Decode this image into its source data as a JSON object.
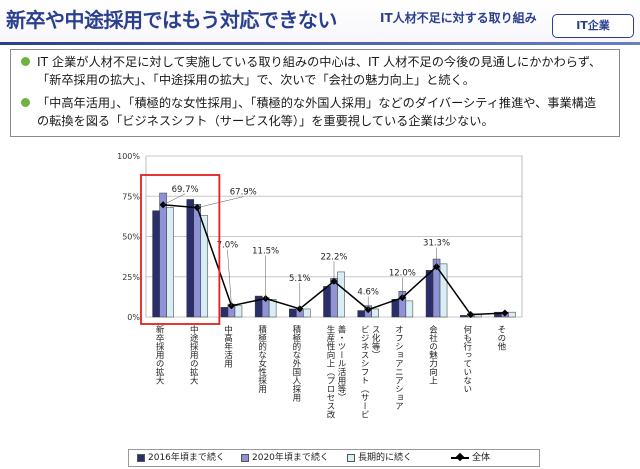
{
  "header": {
    "title": "新卒や中途採用ではもう対応できない",
    "subtitle": "IT人材不足に対する取り組み",
    "badge": "IT企業"
  },
  "notes": [
    "IT 企業が人材不足に対して実施している取り組みの中心は、IT 人材不足の今後の見通しにかかわらず、「新卒採用の拡大」、「中途採用の拡大」で、次いで「会社の魅力向上」と続く。",
    "「中高年活用」、「積極的な女性採用」、「積極的な外国人採用」などのダイバーシティ推進や、事業構造の転換を図る「ビジネスシフト（サービス化等）」を重要視している企業は少ない。"
  ],
  "colors": {
    "series1": "#2a2f6b",
    "series2": "#8f93d6",
    "series3": "#d9eef4",
    "line": "#000000",
    "highlight": "#e02020",
    "accent": "#2b3f8f",
    "bullet": "#6cb33f"
  },
  "chart_data": {
    "type": "bar",
    "categories": [
      "新卒採用の拡大",
      "中途採用の拡大",
      "中高年活用",
      "積極的な女性採用",
      "積極的な外国人採用",
      "生産性向上（プロセス改善・ツール活用等）",
      "ビジネスシフト（サービス化等）",
      "オフショアニアショア",
      "会社の魅力向上",
      "何も行っていない",
      "その他"
    ],
    "series": [
      {
        "name": "2016年頃まで続く",
        "values": [
          66,
          73,
          6,
          13,
          5,
          19,
          4,
          11,
          29,
          1,
          3
        ]
      },
      {
        "name": "2020年頃まで続く",
        "values": [
          77,
          70,
          8,
          12,
          4,
          24,
          7,
          16,
          36,
          2,
          3
        ]
      },
      {
        "name": "長期的に続く",
        "values": [
          68,
          63,
          7,
          11,
          5,
          28,
          5,
          10,
          33,
          2,
          3
        ]
      }
    ],
    "line": {
      "name": "全体",
      "values": [
        69.7,
        67.9,
        7.0,
        11.5,
        5.1,
        22.2,
        4.6,
        12.0,
        31.3,
        1.5,
        2.5
      ]
    },
    "data_labels": [
      "69.7%",
      "67.9%",
      "7.0%",
      "11.5%",
      "5.1%",
      "22.2%",
      "4.6%",
      "12.0%",
      "31.3%",
      "",
      ""
    ],
    "yticks": [
      "0%",
      "25%",
      "50%",
      "75%",
      "100%"
    ],
    "ylim": [
      0,
      100
    ],
    "highlighted_categories": [
      0,
      1
    ]
  }
}
